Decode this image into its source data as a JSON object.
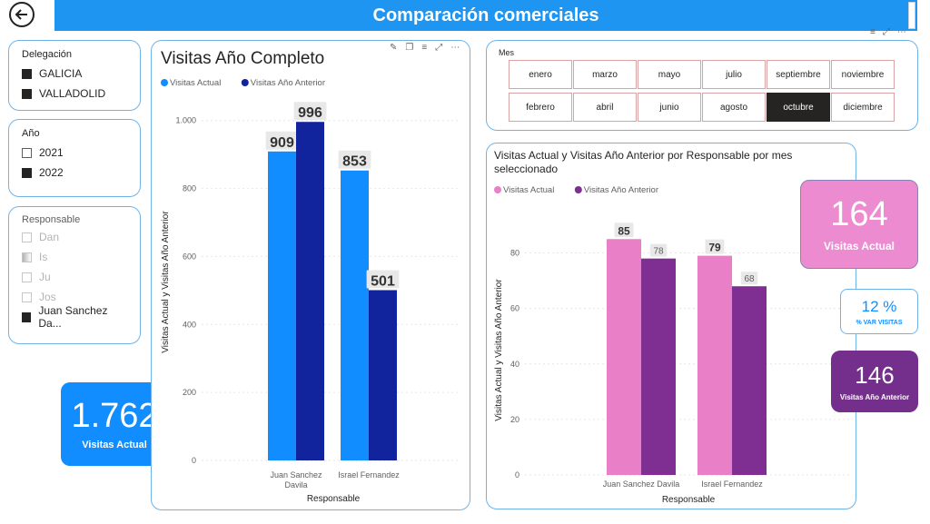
{
  "header": {
    "title": "Comparación comerciales"
  },
  "delegacion": {
    "title": "Delegación",
    "items": [
      {
        "label": "GALICIA"
      },
      {
        "label": "VALLADOLID"
      }
    ]
  },
  "anio": {
    "title": "Año",
    "items": [
      {
        "label": "2021"
      },
      {
        "label": "2022"
      }
    ]
  },
  "responsable": {
    "title": "Responsable",
    "items": [
      {
        "label": "Dan"
      },
      {
        "label": "Is"
      },
      {
        "label": "Ju"
      },
      {
        "label": "Jos"
      },
      {
        "label": "Juan Sanchez Da..."
      }
    ]
  },
  "kpi_total": {
    "value": "1.762",
    "label": "Visitas Actual"
  },
  "mes": {
    "title": "Mes",
    "row1": [
      "enero",
      "marzo",
      "mayo",
      "julio",
      "septiembre",
      "noviembre"
    ],
    "row2": [
      "febrero",
      "abril",
      "junio",
      "agosto",
      "octubre",
      "diciembre"
    ],
    "selected": "octubre"
  },
  "kpi_actual": {
    "value": "164",
    "label": "Visitas Actual"
  },
  "kpi_var": {
    "value": "12 %",
    "label": "% VAR VISITAS"
  },
  "kpi_anterior": {
    "value": "146",
    "label": "Visitas Año Anterior"
  },
  "colors": {
    "actual_blue": "#118dff",
    "anterior_blue": "#12239e",
    "actual_pink": "#e97fc7",
    "anterior_purple": "#7f2f91"
  },
  "chart_data": [
    {
      "type": "bar",
      "title": "Visitas Año Completo",
      "categories": [
        "Juan Sanchez Davila",
        "Israel Fernandez"
      ],
      "series": [
        {
          "name": "Visitas Actual",
          "values": [
            909,
            853
          ]
        },
        {
          "name": "Visitas Año Anterior",
          "values": [
            996,
            501
          ]
        }
      ],
      "value_labels": [
        [
          "909",
          "853"
        ],
        [
          "996",
          "501"
        ]
      ],
      "yticks": [
        0,
        200,
        400,
        600,
        800,
        1000
      ],
      "ytick_labels": [
        "0",
        "200",
        "400",
        "600",
        "800",
        "1.000"
      ],
      "ylim": [
        0,
        1050
      ],
      "xlabel": "Responsable",
      "ylabel": "Visitas Actual y Visitas Año Anterior",
      "grid": true,
      "legend": "top-left"
    },
    {
      "type": "bar",
      "title": "Visitas Actual y Visitas Año Anterior por Responsable por mes seleccionado",
      "categories": [
        "Juan Sanchez Davila",
        "Israel Fernandez"
      ],
      "series": [
        {
          "name": "Visitas Actual",
          "values": [
            85,
            79
          ]
        },
        {
          "name": "Visitas Año Anterior",
          "values": [
            78,
            68
          ]
        }
      ],
      "yticks": [
        0,
        20,
        40,
        60,
        80
      ],
      "ytick_labels": [
        "0",
        "20",
        "40",
        "60",
        "80"
      ],
      "ylim": [
        0,
        90
      ],
      "xlabel": "Responsable",
      "ylabel": "Visitas Actual y Visitas Año Anterior",
      "grid": true,
      "legend": "top-left"
    }
  ]
}
